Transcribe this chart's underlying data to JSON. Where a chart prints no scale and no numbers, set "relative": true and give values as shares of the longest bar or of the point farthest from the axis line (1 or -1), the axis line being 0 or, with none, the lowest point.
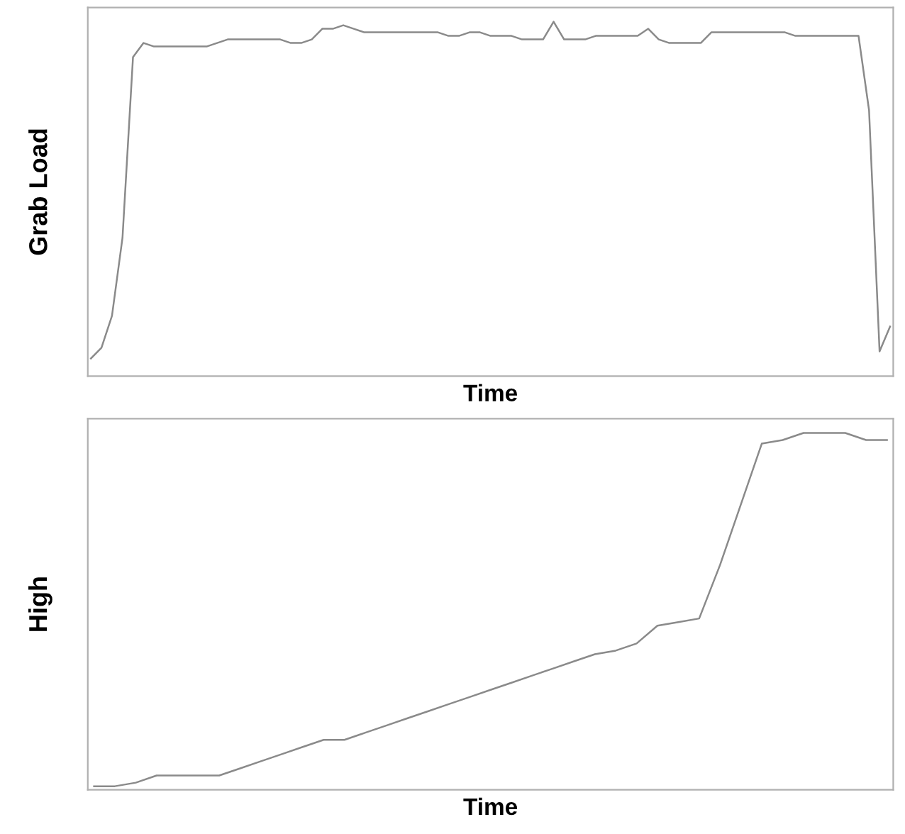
{
  "chart_data": [
    {
      "type": "line",
      "xlabel": "Time",
      "ylabel": "Grab Load",
      "relative": true,
      "tick_labels": false,
      "categories": [
        null,
        null,
        null,
        null,
        null,
        null,
        null,
        null,
        null,
        null,
        null,
        null,
        null,
        null,
        null,
        null,
        null,
        null,
        null,
        null,
        null,
        null,
        null,
        null,
        null,
        null,
        null,
        null,
        null,
        null,
        null,
        null,
        null,
        null,
        null,
        null,
        null,
        null,
        null,
        null,
        null,
        null,
        null,
        null,
        null,
        null,
        null,
        null,
        null,
        null,
        null,
        null,
        null,
        null,
        null,
        null,
        null,
        null,
        null,
        null,
        null,
        null,
        null,
        null,
        null,
        null,
        null,
        null,
        null,
        null,
        null,
        null,
        null,
        null,
        null,
        null,
        null
      ],
      "series": [
        {
          "color": "#8a8a8a",
          "values": [
            0.05,
            0.08,
            0.17,
            0.39,
            0.9,
            0.94,
            0.93,
            0.93,
            0.93,
            0.93,
            0.93,
            0.93,
            0.94,
            0.95,
            0.95,
            0.95,
            0.95,
            0.95,
            0.95,
            0.94,
            0.94,
            0.95,
            0.98,
            0.98,
            0.99,
            0.98,
            0.97,
            0.97,
            0.97,
            0.97,
            0.97,
            0.97,
            0.97,
            0.97,
            0.96,
            0.96,
            0.97,
            0.97,
            0.96,
            0.96,
            0.96,
            0.95,
            0.95,
            0.95,
            1.0,
            0.95,
            0.95,
            0.95,
            0.96,
            0.96,
            0.96,
            0.96,
            0.96,
            0.98,
            0.95,
            0.94,
            0.94,
            0.94,
            0.94,
            0.97,
            0.97,
            0.97,
            0.97,
            0.97,
            0.97,
            0.97,
            0.97,
            0.96,
            0.96,
            0.96,
            0.96,
            0.96,
            0.96,
            0.96,
            0.75,
            0.07,
            0.14
          ]
        }
      ]
    },
    {
      "type": "line",
      "xlabel": "Time",
      "ylabel": "High",
      "relative": true,
      "tick_labels": false,
      "categories": [
        null,
        null,
        null,
        null,
        null,
        null,
        null,
        null,
        null,
        null,
        null,
        null,
        null,
        null,
        null,
        null,
        null,
        null,
        null,
        null,
        null,
        null,
        null,
        null,
        null,
        null,
        null,
        null,
        null,
        null,
        null,
        null,
        null,
        null,
        null,
        null,
        null,
        null,
        null
      ],
      "series": [
        {
          "color": "#8a8a8a",
          "values": [
            0.01,
            0.01,
            0.02,
            0.04,
            0.04,
            0.04,
            0.04,
            0.06,
            0.08,
            0.1,
            0.12,
            0.14,
            0.14,
            0.16,
            0.18,
            0.2,
            0.22,
            0.24,
            0.26,
            0.28,
            0.3,
            0.32,
            0.34,
            0.36,
            0.38,
            0.39,
            0.41,
            0.46,
            0.47,
            0.48,
            0.63,
            0.8,
            0.97,
            0.98,
            1.0,
            1.0,
            1.0,
            0.98,
            0.98
          ]
        }
      ]
    }
  ]
}
